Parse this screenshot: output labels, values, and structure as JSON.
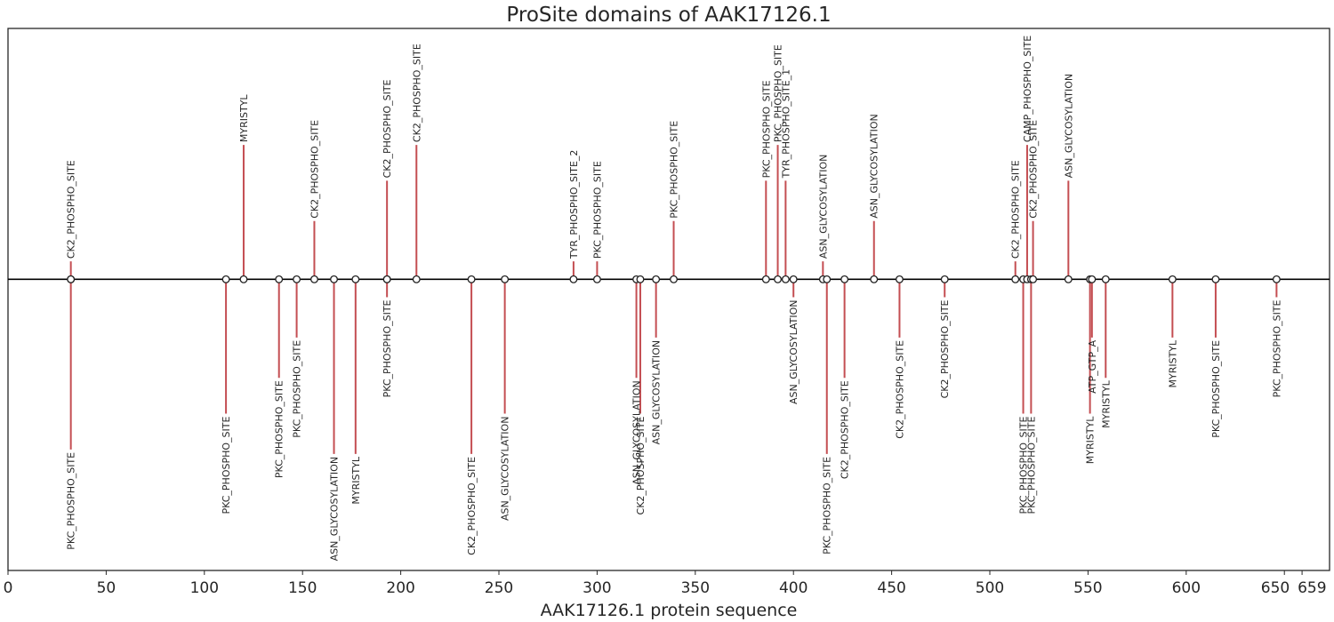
{
  "chart_data": {
    "type": "lollipop",
    "title": "ProSite domains of AAK17126.1",
    "xlabel": "AAK17126.1 protein sequence",
    "ylabel": "",
    "xlim": [
      0,
      673
    ],
    "ylim": [
      -6.5,
      5.6
    ],
    "grid": false,
    "xticks": [
      0,
      50,
      100,
      150,
      200,
      250,
      300,
      350,
      400,
      450,
      500,
      550,
      600,
      650,
      659
    ],
    "xtick_labels": [
      "0",
      "50",
      "100",
      "150",
      "200",
      "250",
      "300",
      "350",
      "400",
      "450",
      "500",
      "550",
      "600",
      "650",
      "659"
    ],
    "colors": {
      "stem": "#c44e52",
      "baseline": "#000000",
      "marker_face": "#ffffff",
      "marker_edge": "#222222",
      "frame": "#262626"
    },
    "sites": [
      {
        "label": "CK2_PHOSPHO_SITE",
        "x": 32,
        "y": 0.4
      },
      {
        "label": "PKC_PHOSPHO_SITE",
        "x": 32,
        "y": -3.8
      },
      {
        "label": "PKC_PHOSPHO_SITE",
        "x": 111,
        "y": -3.0
      },
      {
        "label": "MYRISTYL",
        "x": 120,
        "y": 3.0
      },
      {
        "label": "PKC_PHOSPHO_SITE",
        "x": 138,
        "y": -2.2
      },
      {
        "label": "PKC_PHOSPHO_SITE",
        "x": 147,
        "y": -1.3
      },
      {
        "label": "CK2_PHOSPHO_SITE",
        "x": 156,
        "y": 1.3
      },
      {
        "label": "ASN_GLYCOSYLATION",
        "x": 166,
        "y": -3.9
      },
      {
        "label": "MYRISTYL",
        "x": 177,
        "y": -3.9
      },
      {
        "label": "CK2_PHOSPHO_SITE",
        "x": 193,
        "y": 2.2
      },
      {
        "label": "PKC_PHOSPHO_SITE",
        "x": 193,
        "y": -0.4
      },
      {
        "label": "CK2_PHOSPHO_SITE",
        "x": 208,
        "y": 3.0
      },
      {
        "label": "CK2_PHOSPHO_SITE",
        "x": 236,
        "y": -3.9
      },
      {
        "label": "ASN_GLYCOSYLATION",
        "x": 253,
        "y": -3.0
      },
      {
        "label": "TYR_PHOSPHO_SITE_2",
        "x": 288,
        "y": 0.4
      },
      {
        "label": "PKC_PHOSPHO_SITE",
        "x": 300,
        "y": 0.4
      },
      {
        "label": "ASN_GLYCOSYLATION",
        "x": 320,
        "y": -2.2
      },
      {
        "label": "CK2_PHOSPHO_SITE",
        "x": 322,
        "y": -3.0
      },
      {
        "label": "ASN_GLYCOSYLATION",
        "x": 330,
        "y": -1.3
      },
      {
        "label": "PKC_PHOSPHO_SITE",
        "x": 339,
        "y": 1.3
      },
      {
        "label": "PKC_PHOSPHO_SITE",
        "x": 386,
        "y": 2.2
      },
      {
        "label": "PKC_PHOSPHO_SITE",
        "x": 392,
        "y": 3.0
      },
      {
        "label": "TYR_PHOSPHO_SITE_1",
        "x": 396,
        "y": 2.2
      },
      {
        "label": "ASN_GLYCOSYLATION",
        "x": 400,
        "y": -0.4
      },
      {
        "label": "ASN_GLYCOSYLATION",
        "x": 415,
        "y": 0.4
      },
      {
        "label": "PKC_PHOSPHO_SITE",
        "x": 417,
        "y": -3.9
      },
      {
        "label": "CK2_PHOSPHO_SITE",
        "x": 426,
        "y": -2.2
      },
      {
        "label": "ASN_GLYCOSYLATION",
        "x": 441,
        "y": 1.3
      },
      {
        "label": "CK2_PHOSPHO_SITE",
        "x": 454,
        "y": -1.3
      },
      {
        "label": "CK2_PHOSPHO_SITE",
        "x": 477,
        "y": -0.4
      },
      {
        "label": "CK2_PHOSPHO_SITE",
        "x": 513,
        "y": 0.4
      },
      {
        "label": "PKC_PHOSPHO_SITE",
        "x": 517,
        "y": -3.0
      },
      {
        "label": "CAMP_PHOSPHO_SITE",
        "x": 519,
        "y": 3.0
      },
      {
        "label": "PKC_PHOSPHO_SITE",
        "x": 521,
        "y": -3.0
      },
      {
        "label": "CK2_PHOSPHO_SITE",
        "x": 522,
        "y": 1.3
      },
      {
        "label": "ASN_GLYCOSYLATION",
        "x": 540,
        "y": 2.2
      },
      {
        "label": "MYRISTYL",
        "x": 551,
        "y": -3.0
      },
      {
        "label": "ATP_GTP_A",
        "x": 552,
        "y": -1.3
      },
      {
        "label": "MYRISTYL",
        "x": 559,
        "y": -2.2
      },
      {
        "label": "MYRISTYL",
        "x": 593,
        "y": -1.3
      },
      {
        "label": "PKC_PHOSPHO_SITE",
        "x": 615,
        "y": -1.3
      },
      {
        "label": "PKC_PHOSPHO_SITE",
        "x": 646,
        "y": -0.4
      }
    ]
  }
}
